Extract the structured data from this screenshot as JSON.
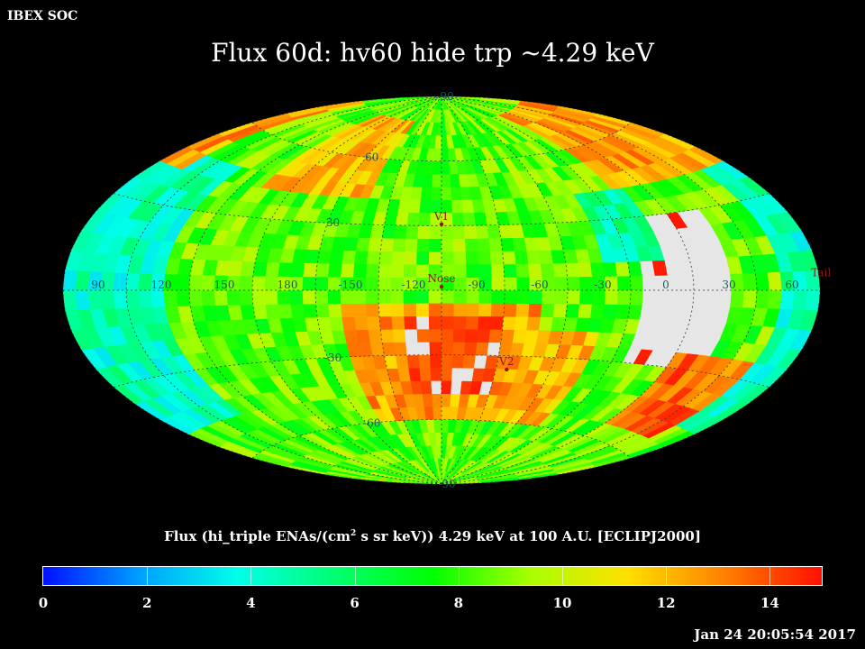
{
  "header": {
    "corner_label": "IBEX SOC",
    "title": "Flux   60d: hv60 hide trp ~4.29 keV"
  },
  "colorbar": {
    "title_pre": "Flux (hi_triple ENAs/(cm",
    "title_sup": "2",
    "title_post": " s sr keV))  4.29 keV at 100 A.U. [ECLIPJ2000]",
    "min": 0,
    "max": 15,
    "ticks": [
      "0",
      "2",
      "4",
      "6",
      "8",
      "10",
      "12",
      "14"
    ],
    "colors": [
      "#0010ff",
      "#00a0ff",
      "#00ffe8",
      "#00ff70",
      "#00ff00",
      "#a8ff00",
      "#ffe000",
      "#ff8000",
      "#ff1000"
    ]
  },
  "chart_data": {
    "type": "heatmap",
    "projection": "aitoff",
    "grid": true,
    "longitude_labels": [
      "60",
      "30",
      "0",
      "-30",
      "-60",
      "-90",
      "-120",
      "-150",
      "180",
      "150",
      "120",
      "90"
    ],
    "latitude_labels": [
      "90",
      "60",
      "30",
      "-30",
      "-60",
      "-90"
    ],
    "markers": [
      {
        "name": "V1",
        "lon": -105,
        "lat": 34
      },
      {
        "name": "Nose",
        "lon": -105,
        "lat": 5
      },
      {
        "name": "V2",
        "lon": -70,
        "lat": -33
      },
      {
        "name": "Tail",
        "lon": 75,
        "lat": 5
      }
    ],
    "regions": [
      {
        "lon": [
          30,
          90
        ],
        "lat": [
          -45,
          45
        ],
        "value": 4.5
      },
      {
        "lon": [
          -150,
          -60
        ],
        "lat": [
          -60,
          -5
        ],
        "value": 12.5
      },
      {
        "lon": [
          -135,
          -90
        ],
        "lat": [
          -45,
          -10
        ],
        "value": 14.5
      },
      {
        "lon": [
          60,
          150
        ],
        "lat": [
          40,
          80
        ],
        "value": 12.5
      },
      {
        "lon": [
          -60,
          0
        ],
        "lat": [
          40,
          75
        ],
        "value": 12
      },
      {
        "lon": [
          120,
          160
        ],
        "lat": [
          -30,
          30
        ],
        "value": 16
      },
      {
        "lon": [
          95,
          135
        ],
        "lat": [
          -55,
          -25
        ],
        "value": 13.5
      },
      {
        "lon": [
          150,
          180
        ],
        "lat": [
          10,
          40
        ],
        "value": 5
      },
      {
        "lon": [
          -180,
          -150
        ],
        "lat": [
          -60,
          -20
        ],
        "value": 12
      }
    ],
    "background_value": 8.5,
    "above_max_color": "#e6e6e6",
    "no_data_color": "#1e1e1e",
    "ylim": [
      0,
      15
    ]
  },
  "footer": {
    "timestamp": "Jan 24 20:05:54 2017"
  }
}
